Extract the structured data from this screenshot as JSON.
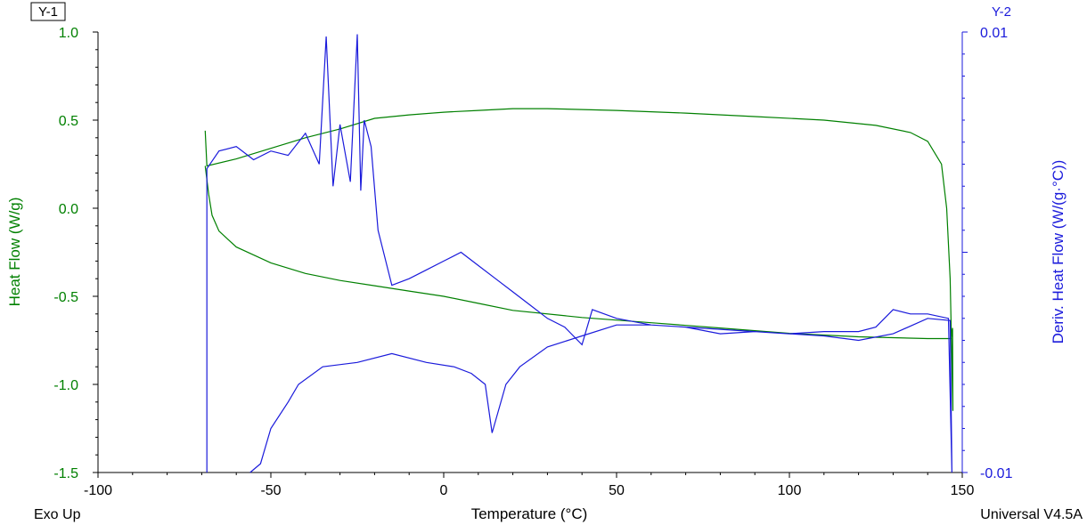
{
  "tags": {
    "y1_tag": "Y-1",
    "y2_tag": "Y-2"
  },
  "footer": {
    "left": "Exo Up",
    "right": "Universal V4.5A"
  },
  "colors": {
    "heat_flow": "#008000",
    "deriv": "#1a1adb",
    "axis": "#000000"
  },
  "chart_data": {
    "type": "line",
    "xlabel": "Temperature (°C)",
    "ylabel": "Heat Flow (W/g)",
    "y2label": "Deriv. Heat Flow (W/(g·°C))",
    "xlim": [
      -100,
      150
    ],
    "ylim": [
      -1.5,
      1.0
    ],
    "y2lim": [
      -0.01,
      0.01
    ],
    "x_ticks": [
      "-100",
      "-50",
      "0",
      "50",
      "100",
      "150"
    ],
    "y_ticks": [
      "-1.5",
      "-1.0",
      "-0.5",
      "0.0",
      "0.5",
      "1.0"
    ],
    "y2_ticks": [
      "-0.01",
      "0.01"
    ],
    "series": [
      {
        "name": "Heat Flow (W/g)",
        "axis": "y1",
        "points": [
          [
            -69,
            0.44
          ],
          [
            -68.5,
            0.24
          ],
          [
            -60,
            0.28
          ],
          [
            -50,
            0.34
          ],
          [
            -40,
            0.4
          ],
          [
            -30,
            0.45
          ],
          [
            -20,
            0.51
          ],
          [
            -10,
            0.53
          ],
          [
            0,
            0.545
          ],
          [
            10,
            0.555
          ],
          [
            20,
            0.565
          ],
          [
            30,
            0.565
          ],
          [
            50,
            0.555
          ],
          [
            70,
            0.54
          ],
          [
            90,
            0.52
          ],
          [
            110,
            0.5
          ],
          [
            125,
            0.47
          ],
          [
            135,
            0.43
          ],
          [
            140,
            0.38
          ],
          [
            144,
            0.25
          ],
          [
            145.5,
            0.0
          ],
          [
            146.5,
            -0.4
          ],
          [
            147.3,
            -1.15
          ],
          [
            147.2,
            -0.68
          ],
          [
            146.8,
            -0.74
          ],
          [
            140,
            -0.74
          ],
          [
            120,
            -0.73
          ],
          [
            100,
            -0.71
          ],
          [
            80,
            -0.68
          ],
          [
            60,
            -0.65
          ],
          [
            40,
            -0.62
          ],
          [
            20,
            -0.58
          ],
          [
            10,
            -0.54
          ],
          [
            0,
            -0.5
          ],
          [
            -10,
            -0.47
          ],
          [
            -20,
            -0.44
          ],
          [
            -30,
            -0.41
          ],
          [
            -40,
            -0.37
          ],
          [
            -50,
            -0.31
          ],
          [
            -60,
            -0.22
          ],
          [
            -65,
            -0.13
          ],
          [
            -67,
            -0.04
          ],
          [
            -68,
            0.08
          ],
          [
            -69,
            0.24
          ]
        ]
      },
      {
        "name": "Deriv. Heat Flow (W/(g·°C))",
        "axis": "y2",
        "points": [
          [
            -68.5,
            -0.01
          ],
          [
            -68.5,
            0.0038
          ],
          [
            -65,
            0.0046
          ],
          [
            -60,
            0.0048
          ],
          [
            -55,
            0.0042
          ],
          [
            -50,
            0.0046
          ],
          [
            -45,
            0.0044
          ],
          [
            -40,
            0.0054
          ],
          [
            -36,
            0.004
          ],
          [
            -34,
            0.0098
          ],
          [
            -32,
            0.003
          ],
          [
            -30,
            0.0058
          ],
          [
            -27,
            0.0032
          ],
          [
            -25,
            0.0099
          ],
          [
            -24,
            0.0028
          ],
          [
            -23,
            0.006
          ],
          [
            -21,
            0.0048
          ],
          [
            -19,
            0.001
          ],
          [
            -15,
            -0.0015
          ],
          [
            -10,
            -0.0012
          ],
          [
            -5,
            -0.0008
          ],
          [
            0,
            -0.0004
          ],
          [
            5,
            0.0
          ],
          [
            10,
            -0.0006
          ],
          [
            15,
            -0.0012
          ],
          [
            20,
            -0.0018
          ],
          [
            25,
            -0.0024
          ],
          [
            30,
            -0.003
          ],
          [
            35,
            -0.0034
          ],
          [
            40,
            -0.0042
          ],
          [
            43,
            -0.0026
          ],
          [
            50,
            -0.003
          ],
          [
            60,
            -0.0033
          ],
          [
            70,
            -0.0034
          ],
          [
            80,
            -0.0035
          ],
          [
            90,
            -0.0036
          ],
          [
            100,
            -0.0037
          ],
          [
            110,
            -0.0036
          ],
          [
            120,
            -0.0036
          ],
          [
            125,
            -0.0034
          ],
          [
            130,
            -0.0026
          ],
          [
            135,
            -0.0028
          ],
          [
            140,
            -0.0028
          ],
          [
            146,
            -0.003
          ],
          [
            147,
            -0.01
          ],
          [
            146.5,
            -0.0031
          ],
          [
            140,
            -0.003
          ],
          [
            130,
            -0.0037
          ],
          [
            120,
            -0.004
          ],
          [
            110,
            -0.0038
          ],
          [
            100,
            -0.0037
          ],
          [
            90,
            -0.0036
          ],
          [
            80,
            -0.0037
          ],
          [
            70,
            -0.0034
          ],
          [
            60,
            -0.0033
          ],
          [
            50,
            -0.0033
          ],
          [
            40,
            -0.0038
          ],
          [
            30,
            -0.0043
          ],
          [
            22,
            -0.0052
          ],
          [
            18,
            -0.006
          ],
          [
            14,
            -0.0082
          ],
          [
            12,
            -0.006
          ],
          [
            8,
            -0.0055
          ],
          [
            3,
            -0.0052
          ],
          [
            -5,
            -0.005
          ],
          [
            -15,
            -0.0046
          ],
          [
            -25,
            -0.005
          ],
          [
            -35,
            -0.0052
          ],
          [
            -42,
            -0.006
          ],
          [
            -45,
            -0.0068
          ],
          [
            -50,
            -0.008
          ],
          [
            -53,
            -0.0096
          ],
          [
            -56,
            -0.01
          ]
        ]
      }
    ]
  }
}
